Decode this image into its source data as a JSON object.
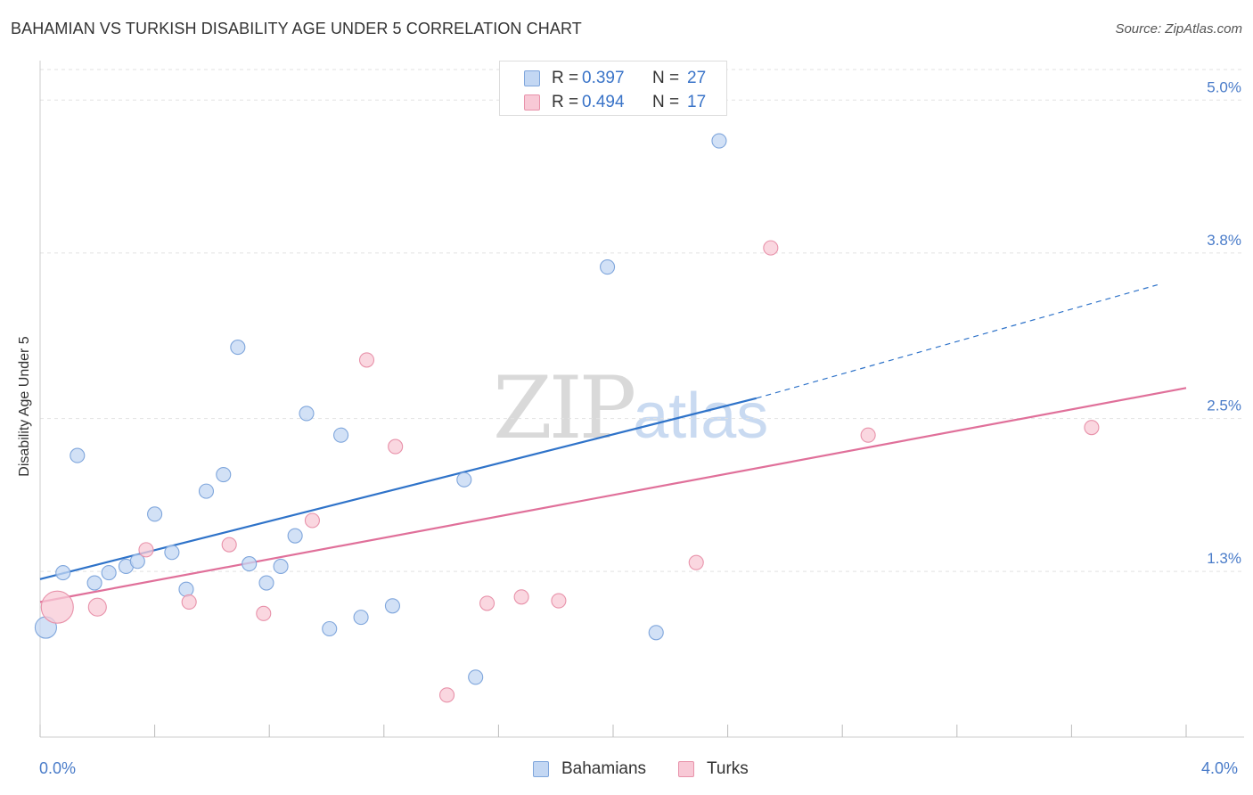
{
  "header": {
    "title": "BAHAMIAN VS TURKISH DISABILITY AGE UNDER 5 CORRELATION CHART",
    "source": "Source: ZipAtlas.com"
  },
  "watermark": {
    "zip": "ZIP",
    "atlas": "atlas"
  },
  "legend": {
    "rows": [
      {
        "r_label": "R =",
        "r_value": "0.397",
        "n_label": "N =",
        "n_value": "27",
        "color_fill": "#c3d7f3",
        "color_stroke": "#7fa6dc"
      },
      {
        "r_label": "R =",
        "r_value": "0.494",
        "n_label": "N =",
        "n_value": "17",
        "color_fill": "#f8c9d6",
        "color_stroke": "#e892aa"
      }
    ]
  },
  "bottom_legend": [
    {
      "label": "Bahamians",
      "color_fill": "#c3d7f3",
      "color_stroke": "#7fa6dc"
    },
    {
      "label": "Turks",
      "color_fill": "#f8c9d6",
      "color_stroke": "#e892aa"
    }
  ],
  "x_tick_labels": {
    "min": "0.0%",
    "max": "4.0%"
  },
  "chart_data": {
    "type": "scatter",
    "title": "BAHAMIAN VS TURKISH DISABILITY AGE UNDER 5 CORRELATION CHART",
    "xlabel": "",
    "ylabel": "Disability Age Under 5",
    "xlim": [
      0,
      4.0
    ],
    "ylim": [
      0,
      5.24
    ],
    "y_ticks": [
      {
        "value": 1.3,
        "label": "1.3%"
      },
      {
        "value": 2.5,
        "label": "2.5%"
      },
      {
        "value": 3.8,
        "label": "3.8%"
      },
      {
        "value": 5.0,
        "label": "5.0%"
      }
    ],
    "x_ticks": [
      0,
      0.4,
      0.8,
      1.2,
      1.6,
      2.0,
      2.4,
      2.8,
      3.2,
      3.6,
      4.0
    ],
    "x_tick_labels": [
      "0.0%",
      "4.0%"
    ],
    "grid": true,
    "legend_position": "top-center",
    "series": [
      {
        "name": "Bahamians",
        "color": "#7fa6dc",
        "fill": "#c3d7f3",
        "line_color": "#2f73c9",
        "trend": {
          "x0": 0.0,
          "y0": 1.24,
          "x1": 2.5,
          "y1": 2.66,
          "dash_to_x": 3.9,
          "dash_to_y": 3.55
        },
        "points": [
          {
            "x": 0.02,
            "y": 0.86,
            "size": 12
          },
          {
            "x": 0.08,
            "y": 1.29,
            "size": 8
          },
          {
            "x": 0.13,
            "y": 2.21,
            "size": 8
          },
          {
            "x": 0.19,
            "y": 1.21,
            "size": 8
          },
          {
            "x": 0.24,
            "y": 1.29,
            "size": 8
          },
          {
            "x": 0.3,
            "y": 1.34,
            "size": 8
          },
          {
            "x": 0.34,
            "y": 1.38,
            "size": 8
          },
          {
            "x": 0.4,
            "y": 1.75,
            "size": 8
          },
          {
            "x": 0.46,
            "y": 1.45,
            "size": 8
          },
          {
            "x": 0.51,
            "y": 1.16,
            "size": 8
          },
          {
            "x": 0.58,
            "y": 1.93,
            "size": 8
          },
          {
            "x": 0.64,
            "y": 2.06,
            "size": 8
          },
          {
            "x": 0.69,
            "y": 3.06,
            "size": 8
          },
          {
            "x": 0.73,
            "y": 1.36,
            "size": 8
          },
          {
            "x": 0.79,
            "y": 1.21,
            "size": 8
          },
          {
            "x": 0.84,
            "y": 1.34,
            "size": 8
          },
          {
            "x": 0.89,
            "y": 1.58,
            "size": 8
          },
          {
            "x": 0.93,
            "y": 2.54,
            "size": 8
          },
          {
            "x": 1.01,
            "y": 0.85,
            "size": 8
          },
          {
            "x": 1.05,
            "y": 2.37,
            "size": 8
          },
          {
            "x": 1.12,
            "y": 0.94,
            "size": 8
          },
          {
            "x": 1.23,
            "y": 1.03,
            "size": 8
          },
          {
            "x": 1.48,
            "y": 2.02,
            "size": 8
          },
          {
            "x": 1.52,
            "y": 0.47,
            "size": 8
          },
          {
            "x": 1.98,
            "y": 3.69,
            "size": 8
          },
          {
            "x": 2.15,
            "y": 0.82,
            "size": 8
          },
          {
            "x": 2.37,
            "y": 4.68,
            "size": 8
          }
        ]
      },
      {
        "name": "Turks",
        "color": "#e892aa",
        "fill": "#f8c9d6",
        "line_color": "#e0709a",
        "trend": {
          "x0": 0.0,
          "y0": 1.06,
          "x1": 4.0,
          "y1": 2.74
        },
        "points": [
          {
            "x": 0.06,
            "y": 1.02,
            "size": 18
          },
          {
            "x": 0.2,
            "y": 1.02,
            "size": 10
          },
          {
            "x": 0.37,
            "y": 1.47,
            "size": 8
          },
          {
            "x": 0.52,
            "y": 1.06,
            "size": 8
          },
          {
            "x": 0.66,
            "y": 1.51,
            "size": 8
          },
          {
            "x": 0.78,
            "y": 0.97,
            "size": 8
          },
          {
            "x": 0.95,
            "y": 1.7,
            "size": 8
          },
          {
            "x": 1.14,
            "y": 2.96,
            "size": 8
          },
          {
            "x": 1.24,
            "y": 2.28,
            "size": 8
          },
          {
            "x": 1.42,
            "y": 0.33,
            "size": 8
          },
          {
            "x": 1.56,
            "y": 1.05,
            "size": 8
          },
          {
            "x": 1.68,
            "y": 1.1,
            "size": 8
          },
          {
            "x": 1.81,
            "y": 1.07,
            "size": 8
          },
          {
            "x": 2.29,
            "y": 1.37,
            "size": 8
          },
          {
            "x": 2.55,
            "y": 3.84,
            "size": 8
          },
          {
            "x": 2.89,
            "y": 2.37,
            "size": 8
          },
          {
            "x": 3.67,
            "y": 2.43,
            "size": 8
          }
        ]
      }
    ]
  }
}
